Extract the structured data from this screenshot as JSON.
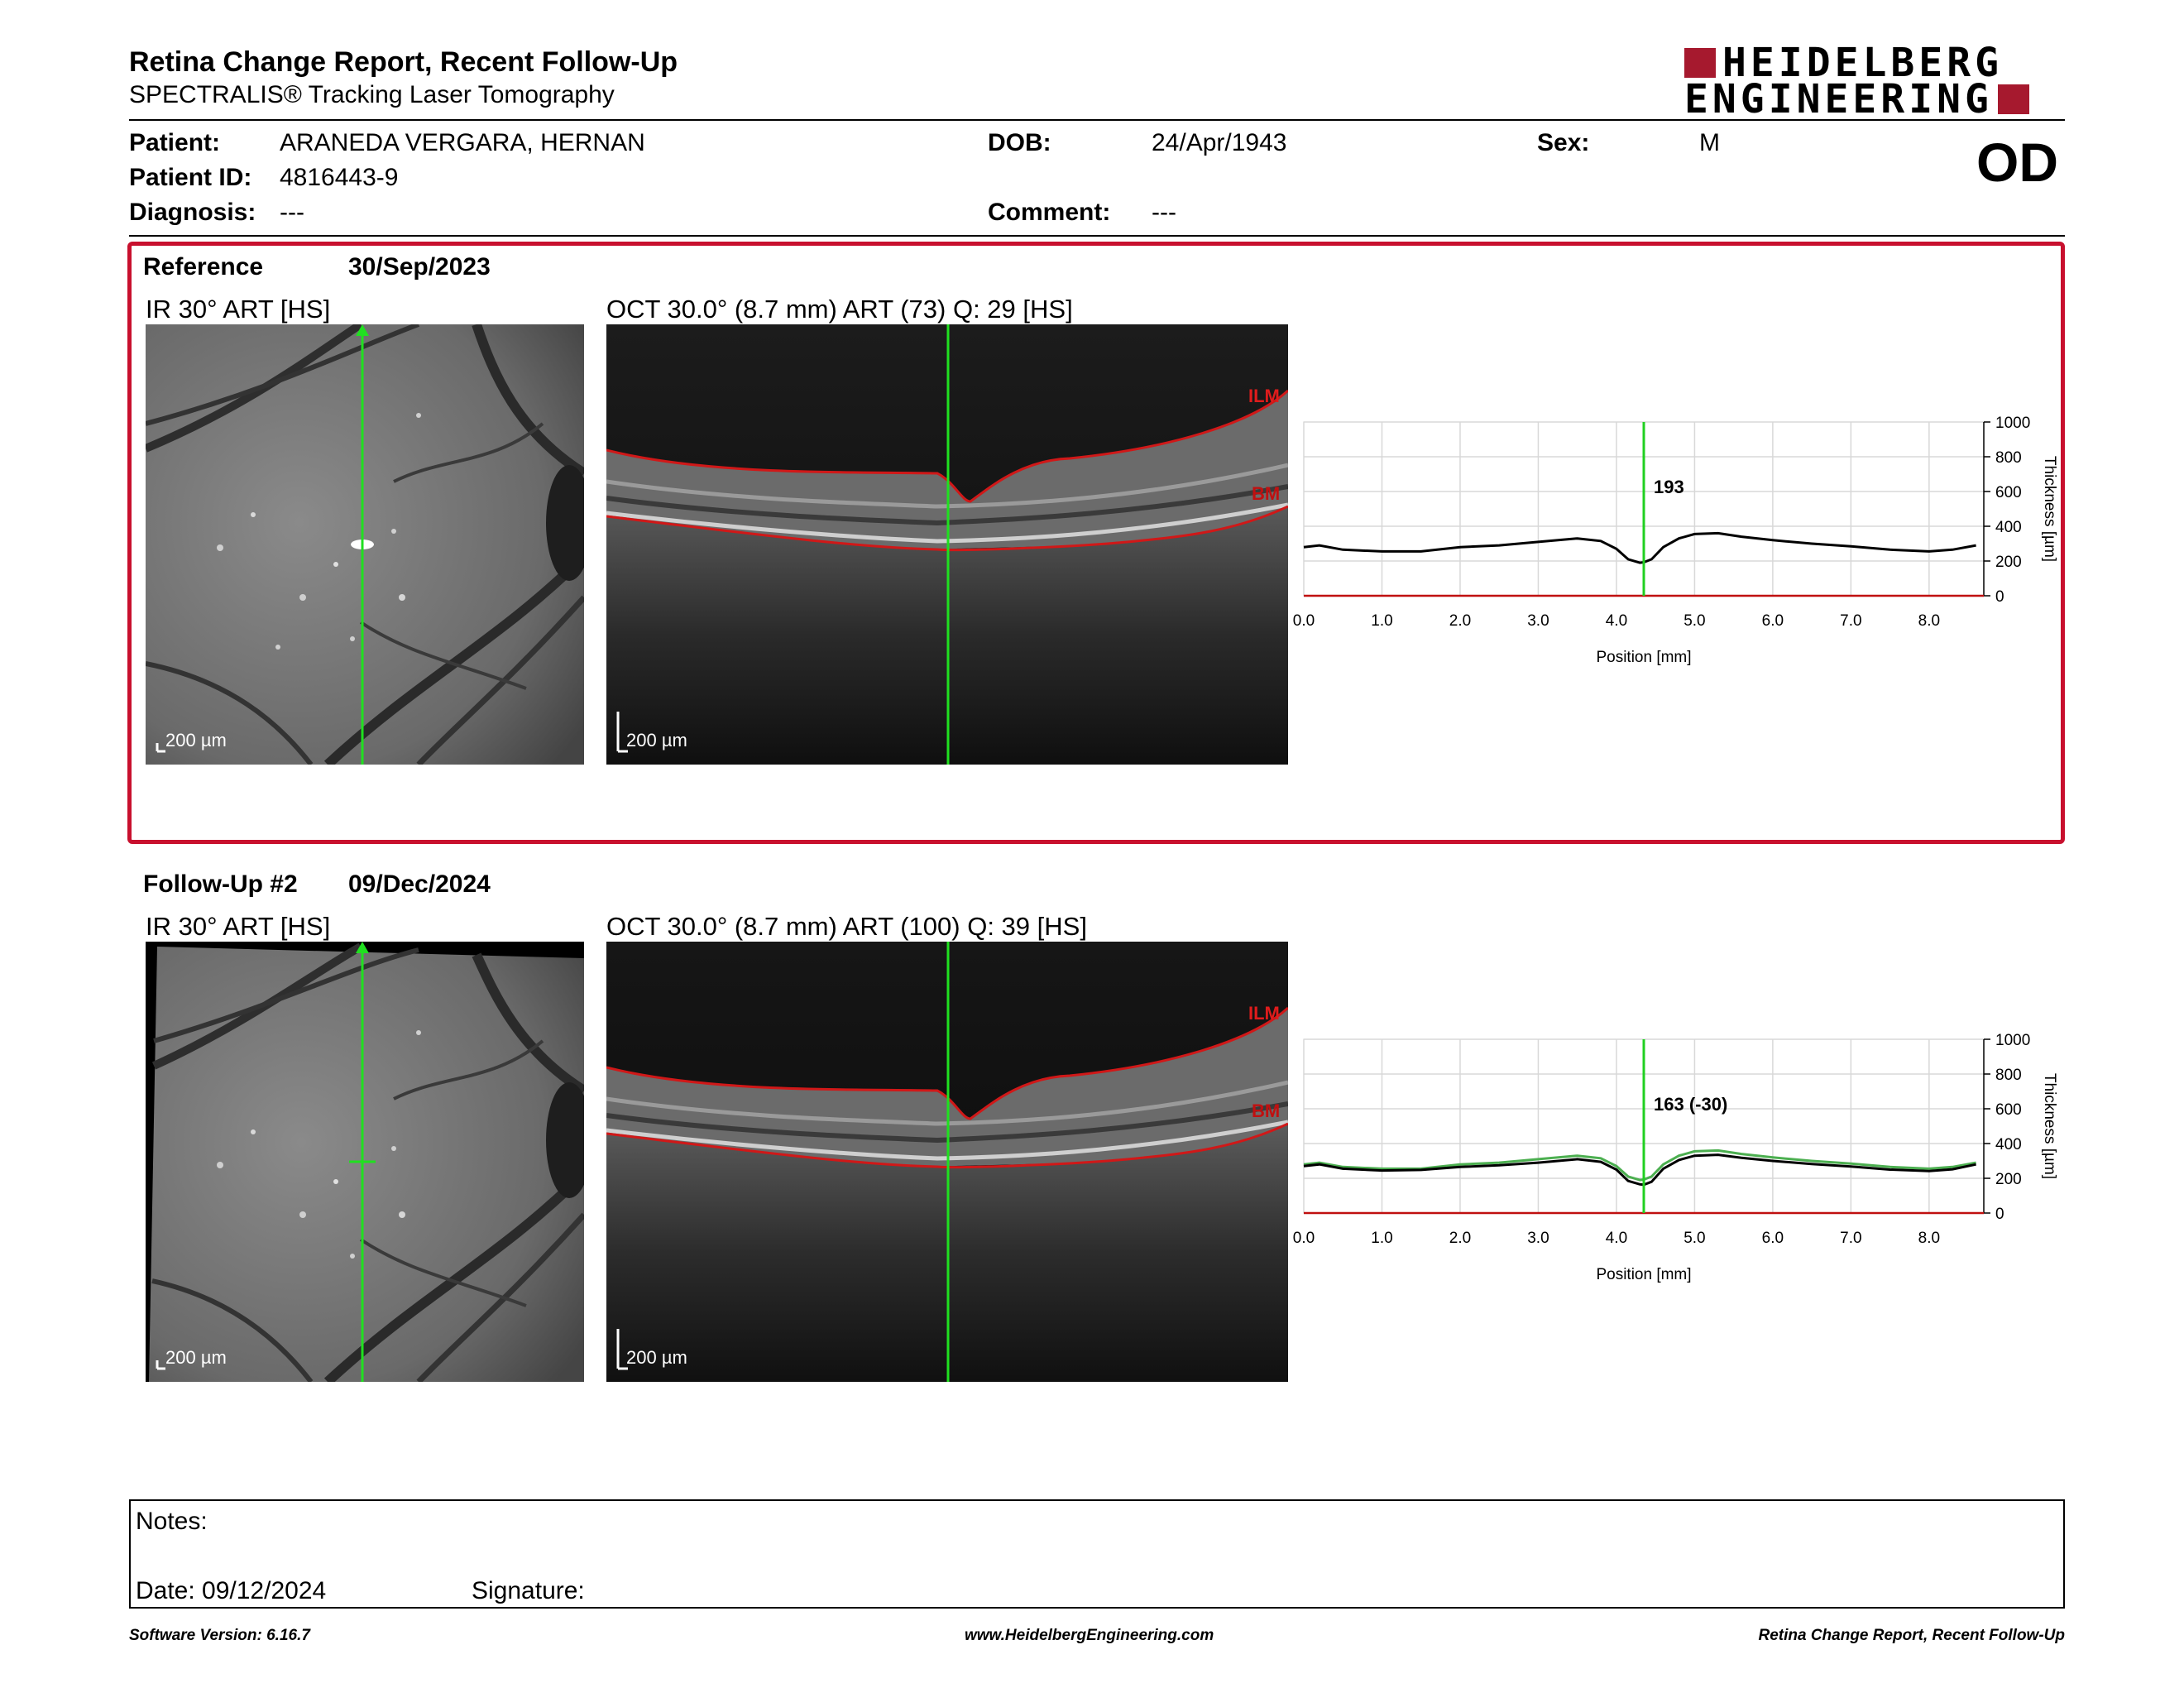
{
  "header": {
    "title": "Retina Change Report, Recent Follow-Up",
    "subtitle": "SPECTRALIS® Tracking Laser Tomography",
    "logo_line1": "HEIDELBERG",
    "logo_line2": "ENGINEERING",
    "eye": "OD"
  },
  "patient": {
    "patient_label": "Patient:",
    "patient_value": "ARANEDA VERGARA, HERNAN",
    "id_label": "Patient ID:",
    "id_value": "4816443-9",
    "diagnosis_label": "Diagnosis:",
    "diagnosis_value": "---",
    "dob_label": "DOB:",
    "dob_value": "24/Apr/1943",
    "comment_label": "Comment:",
    "comment_value": "---",
    "sex_label": "Sex:",
    "sex_value": "M"
  },
  "reference": {
    "label": "Reference",
    "date": "30/Sep/2023",
    "ir_title": "IR 30° ART [HS]",
    "oct_title": "OCT 30.0° (8.7 mm) ART (73) Q: 29 [HS]",
    "ir_scale": "200 µm",
    "oct_scale": "200 µm",
    "ilm_label": "ILM",
    "bm_label": "BM",
    "marker_value": "193"
  },
  "followup": {
    "label": "Follow-Up #2",
    "date": "09/Dec/2024",
    "ir_title": "IR 30° ART [HS]",
    "oct_title": "OCT 30.0° (8.7 mm) ART (100) Q: 39 [HS]",
    "ir_scale": "200 µm",
    "oct_scale": "200 µm",
    "ilm_label": "ILM",
    "bm_label": "BM",
    "marker_value": "163 (-30)"
  },
  "chart_data": [
    {
      "type": "line",
      "xlabel": "Position [mm]",
      "ylabel": "Thickness [µm]",
      "xlim": [
        0,
        8.7
      ],
      "ylim": [
        0,
        1000
      ],
      "xticks": [
        "0.0",
        "1.0",
        "2.0",
        "3.0",
        "4.0",
        "5.0",
        "6.0",
        "7.0",
        "8.0"
      ],
      "yticks": [
        "0",
        "200",
        "400",
        "600",
        "800",
        "1000"
      ],
      "marker_x": 4.35,
      "series": [
        {
          "color": "#000000",
          "x": [
            0.0,
            0.2,
            0.5,
            1.0,
            1.5,
            2.0,
            2.5,
            3.0,
            3.5,
            3.8,
            4.0,
            4.15,
            4.3,
            4.35,
            4.45,
            4.6,
            4.8,
            5.0,
            5.3,
            5.6,
            6.0,
            6.5,
            7.0,
            7.5,
            8.0,
            8.3,
            8.6
          ],
          "y": [
            280,
            290,
            265,
            255,
            255,
            280,
            290,
            310,
            330,
            315,
            270,
            210,
            190,
            193,
            210,
            280,
            330,
            355,
            360,
            340,
            320,
            300,
            285,
            265,
            255,
            265,
            290
          ]
        }
      ]
    },
    {
      "type": "line",
      "xlabel": "Position [mm]",
      "ylabel": "Thickness [µm]",
      "xlim": [
        0,
        8.7
      ],
      "ylim": [
        0,
        1000
      ],
      "xticks": [
        "0.0",
        "1.0",
        "2.0",
        "3.0",
        "4.0",
        "5.0",
        "6.0",
        "7.0",
        "8.0"
      ],
      "yticks": [
        "0",
        "200",
        "400",
        "600",
        "800",
        "1000"
      ],
      "marker_x": 4.35,
      "series": [
        {
          "color": "#4caf50",
          "x": [
            0.0,
            0.2,
            0.5,
            1.0,
            1.5,
            2.0,
            2.5,
            3.0,
            3.5,
            3.8,
            4.0,
            4.15,
            4.3,
            4.35,
            4.45,
            4.6,
            4.8,
            5.0,
            5.3,
            5.6,
            6.0,
            6.5,
            7.0,
            7.5,
            8.0,
            8.3,
            8.6
          ],
          "y": [
            280,
            290,
            265,
            255,
            255,
            280,
            290,
            310,
            330,
            315,
            270,
            210,
            190,
            193,
            210,
            280,
            330,
            355,
            360,
            340,
            320,
            300,
            285,
            265,
            255,
            265,
            290
          ]
        },
        {
          "color": "#000000",
          "x": [
            0.0,
            0.2,
            0.5,
            1.0,
            1.5,
            2.0,
            2.5,
            3.0,
            3.5,
            3.8,
            4.0,
            4.15,
            4.3,
            4.35,
            4.45,
            4.6,
            4.8,
            5.0,
            5.3,
            5.6,
            6.0,
            6.5,
            7.0,
            7.5,
            8.0,
            8.3,
            8.6
          ],
          "y": [
            270,
            280,
            255,
            245,
            248,
            265,
            275,
            290,
            310,
            295,
            250,
            185,
            165,
            163,
            180,
            255,
            305,
            330,
            335,
            318,
            300,
            282,
            268,
            250,
            242,
            252,
            280
          ]
        }
      ]
    }
  ],
  "notes": {
    "notes_label": "Notes:",
    "date_text": "Date: 09/12/2024",
    "signature_label": "Signature:"
  },
  "footer": {
    "left": "Software Version: 6.16.7",
    "center": "www.HeidelbergEngineering.com",
    "right": "Retina Change Report, Recent Follow-Up"
  }
}
